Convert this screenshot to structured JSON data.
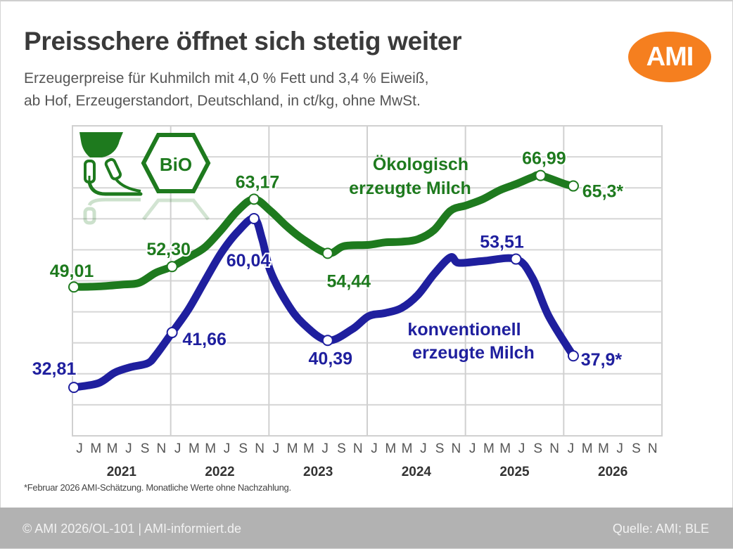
{
  "header": {
    "title": "Preisschere öffnet sich stetig weiter",
    "subtitle_line1": "Erzeugerpreise für Kuhmilch mit 4,0 % Fett und 3,4 % Eiweiß,",
    "subtitle_line2": "ab Hof, Erzeugerstandort, Deutschland, in ct/kg, ohne MwSt.",
    "logo_text": "AMI",
    "logo_color": "#f57f1f"
  },
  "icons": [
    "milking-machine-icon",
    "bio-seal-icon"
  ],
  "bio_seal_text": "BiO",
  "footnote": "*Februar 2026 AMI-Schätzung. Monatliche Werte ohne Nachzahlung.",
  "footer": {
    "left": "© AMI 2026/OL-101 | AMI-informiert.de",
    "right": "Quelle: AMI; BLE"
  },
  "chart_data": {
    "type": "line",
    "title": "Preisschere öffnet sich stetig weiter",
    "xlabel": "",
    "ylabel": "ct/kg",
    "ylim": [
      25,
      75
    ],
    "y_grid_step": 5,
    "y_ticks_shown": false,
    "grid": true,
    "x_month_ticks": [
      "J",
      "M",
      "M",
      "J",
      "S",
      "N"
    ],
    "x_years": [
      "2021",
      "2022",
      "2023",
      "2024",
      "2025",
      "2026"
    ],
    "x_unit": "month index from Jan 2021",
    "colors": {
      "organic": "#1e7a1e",
      "conventional": "#1f1f9e"
    },
    "series": [
      {
        "name": "Ökologisch erzeugte Milch",
        "label_line1": "Ökologisch",
        "label_line2": "erzeugte Milch",
        "points": [
          [
            0,
            49.01
          ],
          [
            3,
            49.1
          ],
          [
            6,
            49.4
          ],
          [
            8,
            49.7
          ],
          [
            10,
            51.3
          ],
          [
            12,
            52.3
          ],
          [
            14,
            53.8
          ],
          [
            16,
            55.4
          ],
          [
            18,
            58.2
          ],
          [
            20,
            61.3
          ],
          [
            22,
            63.17
          ],
          [
            24,
            61.3
          ],
          [
            26,
            58.8
          ],
          [
            28,
            56.7
          ],
          [
            31,
            54.44
          ],
          [
            33,
            55.6
          ],
          [
            36,
            55.8
          ],
          [
            38,
            56.2
          ],
          [
            40,
            56.3
          ],
          [
            42,
            56.7
          ],
          [
            44,
            58.2
          ],
          [
            46,
            61.3
          ],
          [
            48,
            62.2
          ],
          [
            50,
            63.2
          ],
          [
            52,
            64.6
          ],
          [
            54,
            65.6
          ],
          [
            56,
            66.7
          ],
          [
            57,
            66.99
          ],
          [
            60,
            65.6
          ],
          [
            61,
            65.3
          ]
        ],
        "annotations": [
          {
            "i": 0,
            "text": "49,01"
          },
          {
            "i": 12,
            "text": "52,30"
          },
          {
            "i": 22,
            "text": "63,17"
          },
          {
            "i": 31,
            "text": "54,44"
          },
          {
            "i": 57,
            "text": "66,99"
          },
          {
            "i": 61,
            "text": "65,3*"
          }
        ]
      },
      {
        "name": "konventionell erzeugte Milch",
        "label_line1": "konventionell",
        "label_line2": "erzeugte Milch",
        "points": [
          [
            0,
            32.81
          ],
          [
            3,
            33.5
          ],
          [
            5,
            35.2
          ],
          [
            7,
            36.1
          ],
          [
            9,
            36.7
          ],
          [
            10,
            38.0
          ],
          [
            12,
            41.66
          ],
          [
            14,
            45.4
          ],
          [
            16,
            50.0
          ],
          [
            18,
            54.5
          ],
          [
            20,
            57.9
          ],
          [
            22,
            60.04
          ],
          [
            23,
            56.7
          ],
          [
            24,
            51.6
          ],
          [
            26,
            46.5
          ],
          [
            28,
            43.1
          ],
          [
            31,
            40.39
          ],
          [
            34,
            42.2
          ],
          [
            36,
            44.3
          ],
          [
            38,
            44.8
          ],
          [
            40,
            45.6
          ],
          [
            42,
            47.7
          ],
          [
            44,
            51.1
          ],
          [
            46,
            53.8
          ],
          [
            47,
            52.9
          ],
          [
            50,
            53.2
          ],
          [
            54,
            53.51
          ],
          [
            56,
            50.5
          ],
          [
            58,
            44.3
          ],
          [
            61,
            37.9
          ]
        ],
        "annotations": [
          {
            "i": 0,
            "text": "32,81"
          },
          {
            "i": 12,
            "text": "41,66"
          },
          {
            "i": 22,
            "text": "60,04"
          },
          {
            "i": 31,
            "text": "40,39"
          },
          {
            "i": 54,
            "text": "53,51"
          },
          {
            "i": 61,
            "text": "37,9*"
          }
        ]
      }
    ]
  }
}
